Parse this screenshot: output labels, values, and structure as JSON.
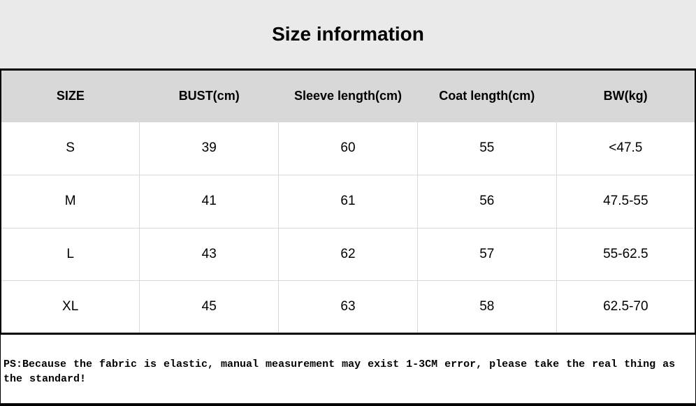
{
  "banner": {
    "title": "Size information"
  },
  "table": {
    "columns": [
      "SIZE",
      "BUST(cm)",
      "Sleeve length(cm)",
      "Coat length(cm)",
      "BW(kg)"
    ],
    "rows": [
      [
        "S",
        "39",
        "60",
        "55",
        "<47.5"
      ],
      [
        "M",
        "41",
        "61",
        "56",
        "47.5-55"
      ],
      [
        "L",
        "43",
        "62",
        "57",
        "55-62.5"
      ],
      [
        "XL",
        "45",
        "63",
        "58",
        "62.5-70"
      ]
    ]
  },
  "note": {
    "text": "PS:Because the fabric is elastic, manual measurement may exist 1-3CM error, please take the real thing as the standard!"
  },
  "colors": {
    "banner_bg": "#eaeaea",
    "header_bg": "#d8d8d8",
    "grid_line": "#d9d9d9",
    "border": "#000000",
    "text": "#000000"
  },
  "chart_data": {
    "type": "table",
    "title": "Size information",
    "columns": [
      "SIZE",
      "BUST(cm)",
      "Sleeve length(cm)",
      "Coat length(cm)",
      "BW(kg)"
    ],
    "rows": [
      {
        "size": "S",
        "bust_cm": 39,
        "sleeve_length_cm": 60,
        "coat_length_cm": 55,
        "bw_kg": "<47.5"
      },
      {
        "size": "M",
        "bust_cm": 41,
        "sleeve_length_cm": 61,
        "coat_length_cm": 56,
        "bw_kg": "47.5-55"
      },
      {
        "size": "L",
        "bust_cm": 43,
        "sleeve_length_cm": 62,
        "coat_length_cm": 57,
        "bw_kg": "55-62.5"
      },
      {
        "size": "XL",
        "bust_cm": 45,
        "sleeve_length_cm": 63,
        "coat_length_cm": 58,
        "bw_kg": "62.5-70"
      }
    ],
    "footnote": "PS:Because the fabric is elastic, manual measurement may exist 1-3CM error, please take the real thing as the standard!"
  }
}
